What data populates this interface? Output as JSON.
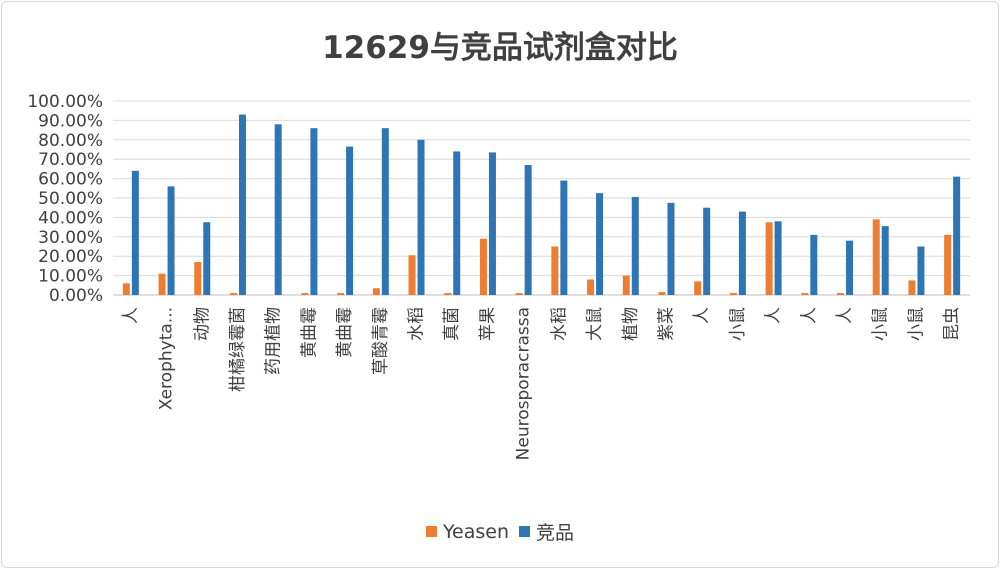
{
  "chart_data": {
    "type": "bar",
    "title": "12629与竞品试剂盒对比",
    "xlabel": "",
    "ylabel": "",
    "ylim": [
      0,
      100
    ],
    "y_ticks": [
      "0.00%",
      "10.00%",
      "20.00%",
      "30.00%",
      "40.00%",
      "50.00%",
      "60.00%",
      "70.00%",
      "80.00%",
      "90.00%",
      "100.00%"
    ],
    "grid": true,
    "legend_position": "bottom",
    "categories": [
      "人",
      "Xerophyta...",
      "动物",
      "柑橘绿霉菌",
      "药用植物",
      "黄曲霉",
      "黄曲霉",
      "草酸青霉",
      "水稻",
      "真菌",
      "苹果",
      "Neurosporacrassa",
      "水稻",
      "大鼠",
      "植物",
      "紫菜",
      "人",
      "小鼠",
      "人",
      "人",
      "人",
      "小鼠",
      "小鼠",
      "昆虫"
    ],
    "series": [
      {
        "name": "Yeasen",
        "color": "#ED7D31",
        "values": [
          6,
          11,
          17,
          1,
          0,
          1,
          1,
          3.5,
          20.5,
          1,
          29,
          1,
          25,
          8,
          10,
          1.5,
          7,
          1,
          37.5,
          1,
          1,
          39,
          7.5,
          31
        ]
      },
      {
        "name": "竞品",
        "color": "#2E75B6",
        "values": [
          64,
          56,
          37.5,
          93,
          88,
          86,
          76.5,
          86,
          80,
          74,
          73.5,
          67,
          59,
          52.5,
          50.5,
          47.5,
          45,
          43,
          38,
          31,
          28,
          35.5,
          25,
          61
        ]
      }
    ]
  }
}
